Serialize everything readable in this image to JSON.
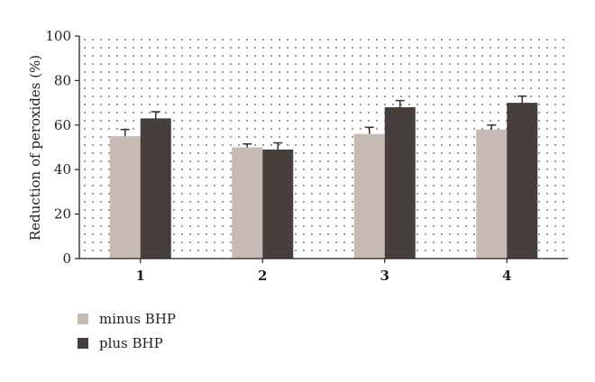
{
  "chart_data": {
    "type": "bar",
    "ylabel": "Reduction of peroxides (%)",
    "xlabel": "",
    "categories": [
      "1",
      "2",
      "3",
      "4"
    ],
    "ylim": [
      0,
      100
    ],
    "yticks": [
      0,
      20,
      40,
      60,
      80,
      100
    ],
    "grid": "dotted",
    "legend_position": "bottom-left",
    "series": [
      {
        "name": "minus BHP",
        "color": "#c8bab4",
        "values": [
          55,
          50,
          56,
          58
        ],
        "errors": [
          3,
          1.5,
          3,
          2
        ]
      },
      {
        "name": "plus BHP",
        "color": "#463f3c",
        "values": [
          63,
          49,
          68,
          70
        ],
        "errors": [
          3,
          3,
          3,
          3
        ]
      }
    ]
  }
}
